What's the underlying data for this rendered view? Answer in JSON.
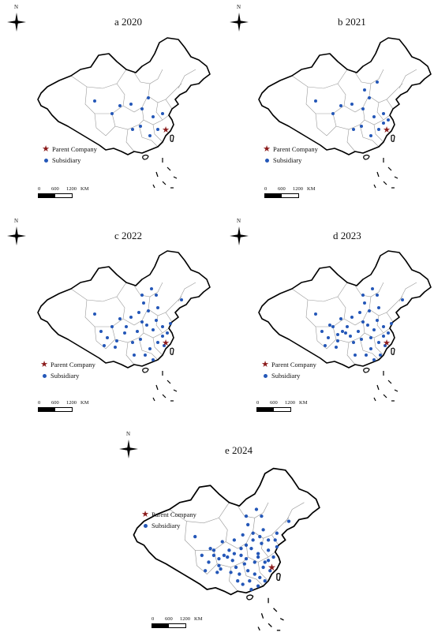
{
  "panels": [
    {
      "title": "a 2020",
      "subsidiaries": 12
    },
    {
      "title": "b 2021",
      "subsidiaries": 16
    },
    {
      "title": "c 2022",
      "subsidiaries": 36
    },
    {
      "title": "d 2023",
      "subsidiaries": 42
    },
    {
      "title": "e 2024",
      "subsidiaries": 60
    }
  ],
  "legend": {
    "parent": "Parent Company",
    "subsidiary": "Subsidiary"
  },
  "compass_label": "N",
  "scale": {
    "t0": "0",
    "t1": "600",
    "t2": "1200",
    "unit": "KM"
  },
  "colors": {
    "parent": "#8b1a1a",
    "subsidiary": "#2457b8",
    "outline": "#000000",
    "province": "#9a9a9a"
  }
}
